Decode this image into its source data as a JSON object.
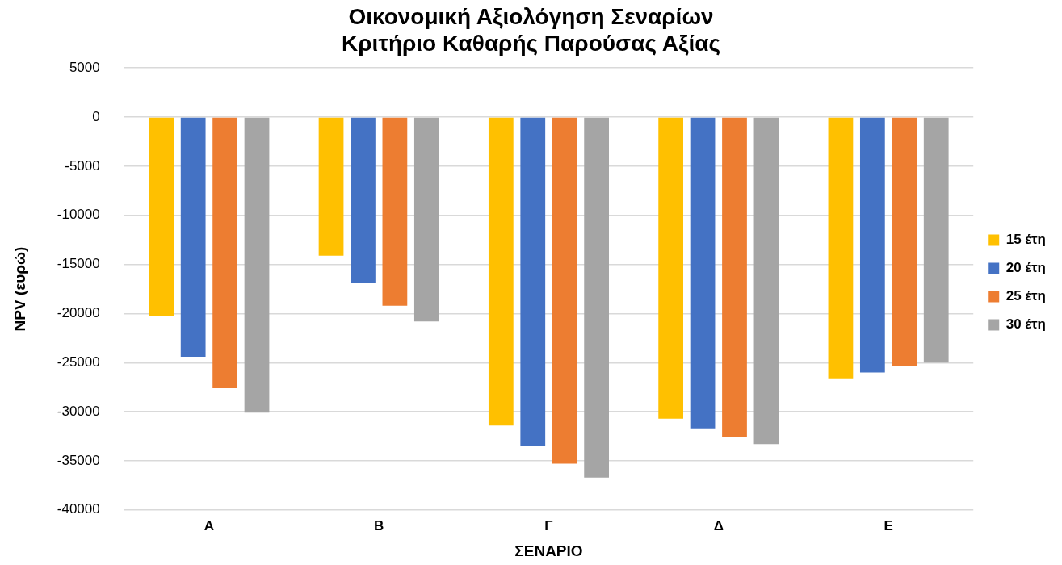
{
  "chart_data": {
    "type": "bar",
    "title": [
      "Οικονομική Αξιολόγηση Σεναρίων",
      "Κριτήριο Καθαρής Παρούσας Αξίας"
    ],
    "xlabel": "ΣΕΝΑΡΙΟ",
    "ylabel": "NPV (ευρώ)",
    "categories": [
      "Α",
      "Β",
      "Γ",
      "Δ",
      "Ε"
    ],
    "series": [
      {
        "name": "15 έτη",
        "color": "#ffc000",
        "values": [
          -20300,
          -14100,
          -31400,
          -30700,
          -26600
        ]
      },
      {
        "name": "20 έτη",
        "color": "#4472c4",
        "values": [
          -24400,
          -16900,
          -33500,
          -31700,
          -26000
        ]
      },
      {
        "name": "25 έτη",
        "color": "#ed7d31",
        "values": [
          -27600,
          -19200,
          -35300,
          -32600,
          -25300
        ]
      },
      {
        "name": "30 έτη",
        "color": "#a5a5a5",
        "values": [
          -30100,
          -20800,
          -36700,
          -33300,
          -25000
        ]
      }
    ],
    "ylim": [
      -40000,
      5000
    ],
    "yticks": [
      -40000,
      -35000,
      -30000,
      -25000,
      -20000,
      -15000,
      -10000,
      -5000,
      0,
      5000
    ],
    "grid": "y",
    "legend": "right"
  }
}
